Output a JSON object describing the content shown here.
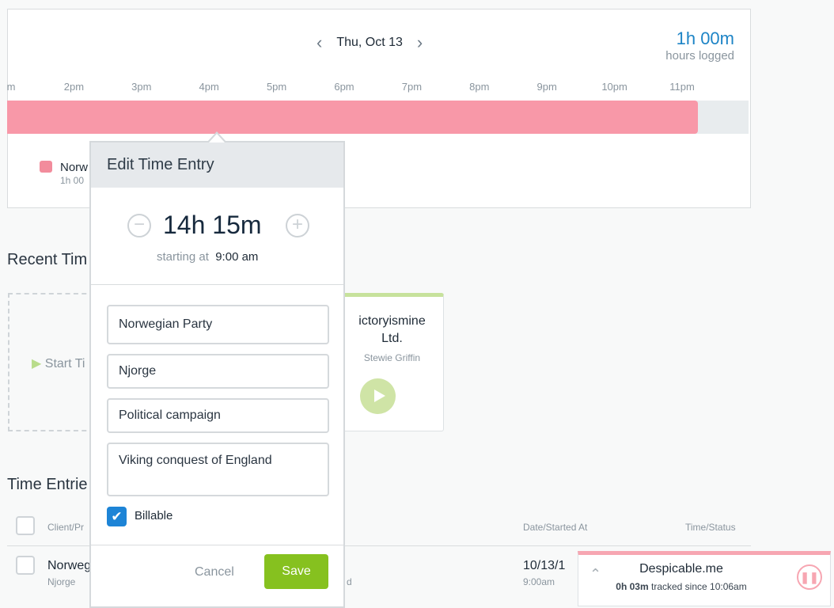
{
  "timeline": {
    "date": "Thu, Oct 13",
    "hours_value": "1h 00m",
    "hours_label": "hours logged",
    "ticks": [
      "m",
      "2pm",
      "3pm",
      "4pm",
      "5pm",
      "6pm",
      "7pm",
      "8pm",
      "9pm",
      "10pm",
      "11pm"
    ],
    "legend_name": "Norw",
    "legend_hours": "1h 00",
    "bar_color": "#f898a8"
  },
  "recent": {
    "title": "Recent Tim",
    "start_label": "Start Ti",
    "card_client": "ictoryismine",
    "card_client2": "Ltd.",
    "card_user": "Stewie Griffin"
  },
  "entries": {
    "title": "Time Entrie",
    "col_client": "Client/Pr",
    "col_date": "Date/Started At",
    "col_time": "Time/Status",
    "row": {
      "client": "Norweg",
      "project": "Njorge",
      "desc_tail": "d",
      "date": "10/13/1",
      "start": "9:00am"
    }
  },
  "popup": {
    "title": "Edit Time Entry",
    "duration": "14h 15m",
    "starting_label": "starting at",
    "starting_value": "9:00 am",
    "client": "Norwegian Party",
    "project": "Njorge",
    "task": "Political campaign",
    "notes": "Viking conquest of England",
    "billable_label": "Billable",
    "billable": true,
    "cancel": "Cancel",
    "save": "Save"
  },
  "tracker": {
    "name": "Despicable.me",
    "time": "0h 03m",
    "since": "tracked since 10:06am"
  }
}
